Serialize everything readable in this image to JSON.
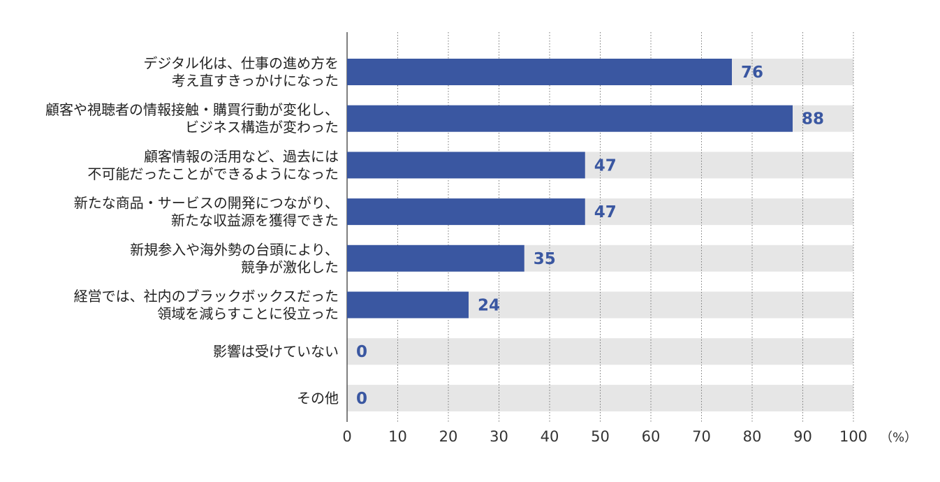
{
  "colors": {
    "bar": "#3a57a1",
    "track": "#e6e6e6",
    "value_text": "#3a57a1",
    "grid": "#777777",
    "text": "#222222"
  },
  "chart_data": {
    "type": "bar",
    "orientation": "horizontal",
    "categories": [
      [
        "デジタル化は、仕事の進め方を",
        "考え直すきっかけになった"
      ],
      [
        "顧客や視聴者の情報接触・購買行動が変化し、",
        "ビジネス構造が変わった"
      ],
      [
        "顧客情報の活用など、過去には",
        "不可能だったことができるようになった"
      ],
      [
        "新たな商品・サービスの開発につながり、",
        "新たな収益源を獲得できた"
      ],
      [
        "新規参入や海外勢の台頭により、",
        "競争が激化した"
      ],
      [
        "経営では、社内のブラックボックスだった",
        "領域を減らすことに役立った"
      ],
      [
        "影響は受けていない"
      ],
      [
        "その他"
      ]
    ],
    "values": [
      76,
      88,
      47,
      47,
      35,
      24,
      0,
      0
    ],
    "xlim": [
      0,
      100
    ],
    "xticks": [
      0,
      10,
      20,
      30,
      40,
      50,
      60,
      70,
      80,
      90,
      100
    ],
    "unit": "（%）",
    "title": "",
    "xlabel": "",
    "ylabel": "",
    "grid": "vertical dotted",
    "legend": "none"
  }
}
